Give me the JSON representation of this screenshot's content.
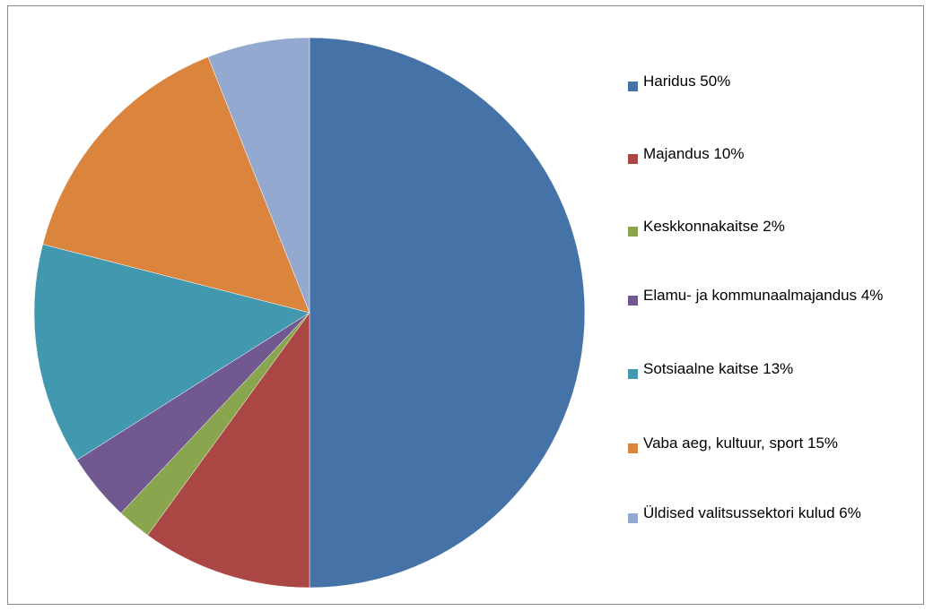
{
  "chart_data": {
    "type": "pie",
    "categories": [
      "Haridus 50%",
      "Majandus 10%",
      "Keskkonnakaitse 2%",
      "Elamu- ja kommunaalmajandus 4%",
      "Sotsiaalne kaitse 13%",
      "Vaba aeg, kultuur, sport 15%",
      "Üldised valitsussektori kulud 6%"
    ],
    "values": [
      50,
      10,
      2,
      4,
      13,
      15,
      6
    ],
    "colors": [
      "#4572a7",
      "#aa4643",
      "#89a54e",
      "#71588f",
      "#4198af",
      "#db843d",
      "#93a9cf"
    ],
    "legend": "right"
  }
}
